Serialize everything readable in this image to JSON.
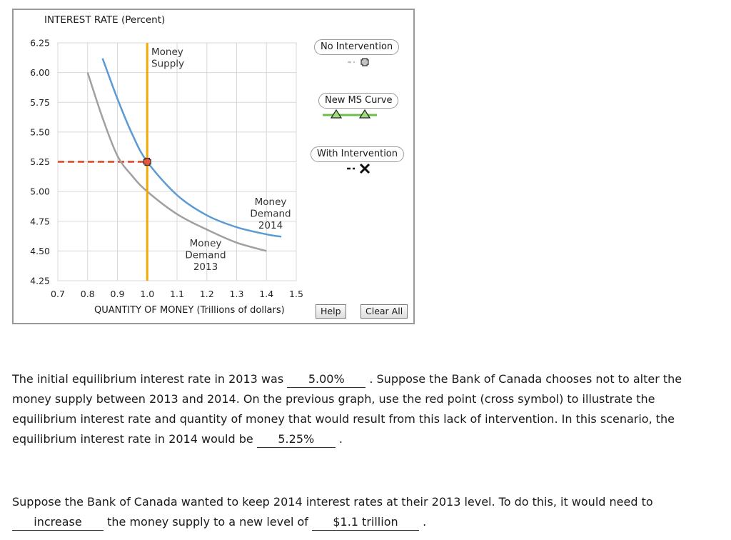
{
  "chart": {
    "ylabel": "INTEREST RATE (Percent)",
    "xlabel": "QUANTITY OF MONEY (Trillions of dollars)",
    "money_supply_label": [
      "Money",
      "Supply"
    ],
    "demand_2014_label": [
      "Money",
      "Demand",
      "2014"
    ],
    "demand_2013_label": [
      "Money",
      "Demand",
      "2013"
    ],
    "colors": {
      "supply": "#f5a800",
      "demand_2014": "#5b9bd5",
      "demand_2013": "#a0a0a0",
      "dashed": "#d9441f",
      "new_ms": "#6cc04a"
    }
  },
  "chart_data": {
    "type": "line",
    "xlim": [
      0.7,
      1.5
    ],
    "ylim": [
      4.25,
      6.25
    ],
    "x_ticks": [
      "0.7",
      "0.8",
      "0.9",
      "1.0",
      "1.1",
      "1.2",
      "1.3",
      "1.4",
      "1.5"
    ],
    "y_ticks": [
      "6.25",
      "6.00",
      "5.75",
      "5.50",
      "5.25",
      "5.00",
      "4.75",
      "4.50",
      "4.25"
    ],
    "grid": true,
    "series": [
      {
        "name": "Money Supply",
        "x": [
          1.0,
          1.0
        ],
        "y": [
          6.25,
          4.25
        ]
      },
      {
        "name": "Money Demand 2014",
        "x": [
          0.85,
          0.9,
          0.95,
          1.0,
          1.1,
          1.2,
          1.3,
          1.4,
          1.45
        ],
        "y": [
          6.12,
          5.78,
          5.48,
          5.25,
          4.97,
          4.8,
          4.7,
          4.64,
          4.62
        ]
      },
      {
        "name": "Money Demand 2013",
        "x": [
          0.8,
          0.85,
          0.9,
          0.95,
          1.0,
          1.1,
          1.2,
          1.3,
          1.4
        ],
        "y": [
          6.0,
          5.62,
          5.3,
          5.13,
          5.0,
          4.81,
          4.68,
          4.57,
          4.5
        ]
      }
    ],
    "point": {
      "name": "No Intervention",
      "x": 1.0,
      "y": 5.25
    },
    "dashed_line": {
      "y": 5.25,
      "from_x": 0.7,
      "to_x": 1.0
    }
  },
  "legend": {
    "no_intervention": "No Intervention",
    "new_ms_curve": "New MS Curve",
    "with_intervention": "With Intervention"
  },
  "buttons": {
    "help": "Help",
    "clear_all": "Clear All"
  },
  "question1": {
    "text_a": "The initial equilibrium interest rate in 2013 was",
    "answer_a": "5.00%",
    "text_b": ". Suppose the Bank of Canada chooses not to alter the money supply between 2013 and 2014. On the previous graph, use the red point (cross symbol) to illustrate the equilibrium interest rate and quantity of money that would result from this lack of intervention. In this scenario, the equilibrium interest rate in 2014 would be",
    "answer_b": "5.25%",
    "text_c": "."
  },
  "question2": {
    "text_a": "Suppose the Bank of Canada wanted to keep 2014 interest rates at their 2013 level. To do this, it would need to",
    "answer_a": "increase",
    "text_b": "the money supply to a new level of",
    "answer_b": "$1.1 trillion",
    "text_c": "."
  }
}
